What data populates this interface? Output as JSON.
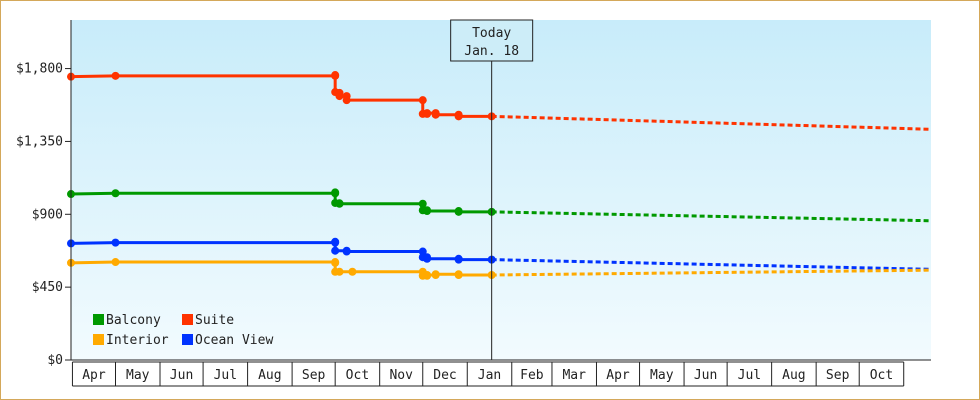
{
  "chart_data": {
    "type": "line",
    "title": "",
    "xlabel": "",
    "ylabel": "",
    "x_range": [
      "Mar 31",
      "Nov 20"
    ],
    "ylim": [
      0,
      2100
    ],
    "y_ticks": [
      0,
      450,
      900,
      1350,
      1800
    ],
    "y_tick_labels": [
      "$0",
      "$450",
      "$900",
      "$1,350",
      "$1,800"
    ],
    "x_tick_labels": [
      "Apr",
      "May",
      "Jun",
      "Jul",
      "Aug",
      "Sep",
      "Oct",
      "Nov",
      "Dec",
      "Jan",
      "Feb",
      "Mar",
      "Apr",
      "May",
      "Jun",
      "Jul",
      "Aug",
      "Sep",
      "Oct"
    ],
    "today_marker": {
      "line1": "Today",
      "line2": "Jan. 18",
      "x": "Jan 18"
    },
    "grid": false,
    "legend_position": "bottom-left",
    "series": [
      {
        "name": "Suite",
        "color": "#ff3300",
        "history": [
          [
            "Mar 31",
            1750
          ],
          [
            "May 1",
            1755
          ],
          [
            "Oct 1",
            1755
          ],
          [
            "Oct 1",
            1760
          ],
          [
            "Oct 1",
            1655
          ],
          [
            "Oct 4",
            1650
          ],
          [
            "Oct 4",
            1630
          ],
          [
            "Oct 9",
            1630
          ],
          [
            "Oct 9",
            1605
          ],
          [
            "Dec 1",
            1605
          ],
          [
            "Dec 1",
            1520
          ],
          [
            "Dec 4",
            1520
          ],
          [
            "Dec 4",
            1525
          ],
          [
            "Dec 10",
            1525
          ],
          [
            "Dec 10",
            1515
          ],
          [
            "Dec 26",
            1515
          ],
          [
            "Dec 26",
            1505
          ],
          [
            "Jan 18",
            1505
          ]
        ],
        "projection": [
          [
            "Jan 18",
            1505
          ],
          [
            "Nov 20",
            1425
          ]
        ]
      },
      {
        "name": "Balcony",
        "color": "#009900",
        "history": [
          [
            "Mar 31",
            1025
          ],
          [
            "May 1",
            1030
          ],
          [
            "Oct 1",
            1030
          ],
          [
            "Oct 1",
            1035
          ],
          [
            "Oct 1",
            970
          ],
          [
            "Oct 4",
            968
          ],
          [
            "Oct 4",
            965
          ],
          [
            "Dec 1",
            965
          ],
          [
            "Dec 1",
            925
          ],
          [
            "Dec 4",
            925
          ],
          [
            "Dec 4",
            920
          ],
          [
            "Dec 26",
            920
          ],
          [
            "Dec 26",
            915
          ],
          [
            "Jan 18",
            915
          ]
        ],
        "projection": [
          [
            "Jan 18",
            915
          ],
          [
            "Nov 20",
            860
          ]
        ]
      },
      {
        "name": "Ocean View",
        "color": "#0033ff",
        "history": [
          [
            "Mar 31",
            720
          ],
          [
            "May 1",
            725
          ],
          [
            "Oct 1",
            725
          ],
          [
            "Oct 1",
            730
          ],
          [
            "Oct 1",
            675
          ],
          [
            "Oct 9",
            675
          ],
          [
            "Oct 9",
            670
          ],
          [
            "Dec 1",
            670
          ],
          [
            "Dec 1",
            635
          ],
          [
            "Dec 4",
            635
          ],
          [
            "Dec 4",
            625
          ],
          [
            "Dec 26",
            625
          ],
          [
            "Dec 26",
            620
          ],
          [
            "Jan 18",
            620
          ]
        ],
        "projection": [
          [
            "Jan 18",
            620
          ],
          [
            "Nov 20",
            560
          ]
        ]
      },
      {
        "name": "Interior",
        "color": "#ffaa00",
        "history": [
          [
            "Mar 31",
            600
          ],
          [
            "May 1",
            605
          ],
          [
            "Oct 1",
            605
          ],
          [
            "Oct 1",
            600
          ],
          [
            "Oct 1",
            545
          ],
          [
            "Oct 4",
            545
          ],
          [
            "Oct 13",
            545
          ],
          [
            "Dec 1",
            545
          ],
          [
            "Dec 1",
            520
          ],
          [
            "Dec 4",
            520
          ],
          [
            "Dec 4",
            525
          ],
          [
            "Dec 10",
            525
          ],
          [
            "Dec 10",
            530
          ],
          [
            "Dec 26",
            530
          ],
          [
            "Dec 26",
            525
          ],
          [
            "Jan 18",
            525
          ]
        ],
        "projection": [
          [
            "Jan 18",
            525
          ],
          [
            "Nov 20",
            555
          ]
        ]
      }
    ],
    "legend": [
      {
        "name": "Balcony",
        "color": "#009900"
      },
      {
        "name": "Suite",
        "color": "#ff3300"
      },
      {
        "name": "Interior",
        "color": "#ffaa00"
      },
      {
        "name": "Ocean View",
        "color": "#0033ff"
      }
    ]
  }
}
